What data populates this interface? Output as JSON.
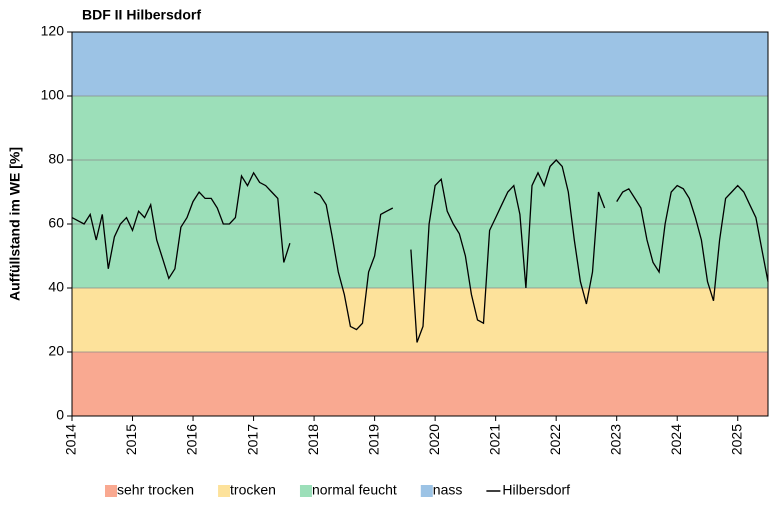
{
  "chart_data": {
    "type": "line",
    "title": "BDF II Hilbersdorf",
    "y_label": "Auffüllstand  im WE [%]",
    "xlim": [
      2014,
      2025.5
    ],
    "xticks": [
      2014,
      2015,
      2016,
      2017,
      2018,
      2019,
      2020,
      2021,
      2022,
      2023,
      2024,
      2025
    ],
    "ylim": [
      0,
      120
    ],
    "yticks": [
      0,
      20,
      40,
      60,
      80,
      100,
      120
    ],
    "grid": true,
    "legend": "bottom",
    "bands": [
      {
        "name": "sehr trocken",
        "color": "#f9a991",
        "from": 0,
        "to": 20
      },
      {
        "name": "trocken",
        "color": "#fde29b",
        "from": 20,
        "to": 40
      },
      {
        "name": "normal feucht",
        "color": "#9cdfb9",
        "from": 40,
        "to": 100
      },
      {
        "name": "nass",
        "color": "#9cc3e5",
        "from": 100,
        "to": 120
      }
    ],
    "x": [
      2014.0,
      2014.1,
      2014.2,
      2014.3,
      2014.4,
      2014.5,
      2014.6,
      2014.7,
      2014.8,
      2014.9,
      2015.0,
      2015.1,
      2015.2,
      2015.3,
      2015.4,
      2015.5,
      2015.6,
      2015.7,
      2015.8,
      2015.9,
      2016.0,
      2016.1,
      2016.2,
      2016.3,
      2016.4,
      2016.5,
      2016.6,
      2016.7,
      2016.8,
      2016.9,
      2017.0,
      2017.1,
      2017.2,
      2017.3,
      2017.4,
      2017.5,
      2017.6,
      2017.7,
      2017.8,
      2017.9,
      2018.0,
      2018.1,
      2018.2,
      2018.3,
      2018.4,
      2018.5,
      2018.6,
      2018.7,
      2018.8,
      2018.9,
      2019.0,
      2019.1,
      2019.2,
      2019.3,
      2019.4,
      2019.5,
      2019.6,
      2019.7,
      2019.8,
      2019.9,
      2020.0,
      2020.1,
      2020.2,
      2020.3,
      2020.4,
      2020.5,
      2020.6,
      2020.7,
      2020.8,
      2020.9,
      2021.0,
      2021.1,
      2021.2,
      2021.3,
      2021.4,
      2021.5,
      2021.6,
      2021.7,
      2021.8,
      2021.9,
      2022.0,
      2022.1,
      2022.2,
      2022.3,
      2022.4,
      2022.5,
      2022.6,
      2022.7,
      2022.8,
      2022.9,
      2023.0,
      2023.1,
      2023.2,
      2023.3,
      2023.4,
      2023.5,
      2023.6,
      2023.7,
      2023.8,
      2023.9,
      2024.0,
      2024.1,
      2024.2,
      2024.3,
      2024.4,
      2024.5,
      2024.6,
      2024.7,
      2024.8,
      2024.9,
      2025.0,
      2025.1,
      2025.2,
      2025.3,
      2025.4,
      2025.5
    ],
    "series": [
      {
        "name": "Hilbersdorf",
        "color": "#000000",
        "values": [
          62,
          61,
          60,
          63,
          55,
          63,
          46,
          56,
          60,
          62,
          58,
          64,
          62,
          66,
          55,
          49,
          43,
          46,
          59,
          62,
          67,
          70,
          68,
          68,
          65,
          60,
          60,
          62,
          75,
          72,
          76,
          73,
          72,
          70,
          68,
          48,
          54,
          null,
          null,
          null,
          70,
          69,
          66,
          56,
          45,
          38,
          28,
          27,
          29,
          45,
          50,
          63,
          64,
          65,
          null,
          null,
          52,
          23,
          28,
          60,
          72,
          74,
          64,
          60,
          57,
          50,
          38,
          30,
          29,
          58,
          62,
          66,
          70,
          72,
          63,
          40,
          72,
          76,
          72,
          78,
          80,
          78,
          70,
          55,
          42,
          35,
          45,
          70,
          65,
          null,
          67,
          70,
          71,
          68,
          65,
          55,
          48,
          45,
          60,
          70,
          72,
          71,
          68,
          62,
          55,
          42,
          36,
          55,
          68,
          70,
          72,
          70,
          66,
          62,
          52,
          42
        ]
      }
    ]
  }
}
